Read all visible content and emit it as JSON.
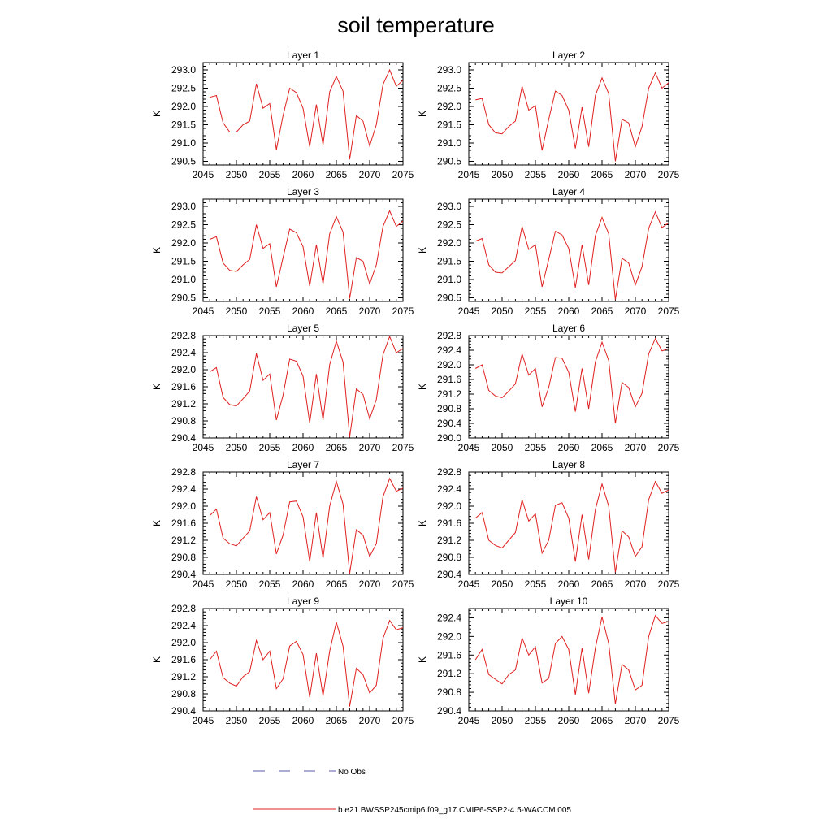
{
  "title": "soil temperature",
  "ylabel": "K",
  "legend": [
    {
      "label": "No Obs",
      "color": "#5a5aa8",
      "dash": true
    },
    {
      "label": "b.e21.BWSSP245cmip6.f09_g17.CMIP6-SSP2-4.5-WACCM.005",
      "color": "#e02020",
      "dash": false
    }
  ],
  "chart_data": [
    {
      "type": "line",
      "title": "Layer 1",
      "xlim": [
        2045,
        2075
      ],
      "ylim": [
        290.4,
        293.2
      ],
      "xticks": [
        "2045",
        "2050",
        "2055",
        "2060",
        "2065",
        "2070",
        "2075"
      ],
      "yticks": [
        "290.5",
        "291.0",
        "291.5",
        "292.0",
        "292.5",
        "293.0"
      ],
      "x": [
        2046,
        2047,
        2048,
        2049,
        2050,
        2051,
        2052,
        2053,
        2054,
        2055,
        2056,
        2057,
        2058,
        2059,
        2060,
        2061,
        2062,
        2063,
        2064,
        2065,
        2066,
        2067,
        2068,
        2069,
        2070,
        2071,
        2072,
        2073,
        2074,
        2075
      ],
      "series": [
        {
          "values": [
            292.25,
            292.3,
            291.55,
            291.3,
            291.3,
            291.5,
            291.6,
            292.62,
            291.95,
            292.08,
            290.82,
            291.75,
            292.5,
            292.38,
            291.95,
            290.9,
            292.05,
            290.95,
            292.4,
            292.82,
            292.42,
            290.55,
            291.75,
            291.6,
            290.92,
            291.5,
            292.6,
            293.0,
            292.55,
            292.72
          ]
        }
      ]
    },
    {
      "type": "line",
      "title": "Layer 2",
      "xlim": [
        2045,
        2075
      ],
      "ylim": [
        290.4,
        293.2
      ],
      "xticks": [
        "2045",
        "2050",
        "2055",
        "2060",
        "2065",
        "2070",
        "2075"
      ],
      "yticks": [
        "290.5",
        "291.0",
        "291.5",
        "292.0",
        "292.5",
        "293.0"
      ],
      "x": [
        2046,
        2047,
        2048,
        2049,
        2050,
        2051,
        2052,
        2053,
        2054,
        2055,
        2056,
        2057,
        2058,
        2059,
        2060,
        2061,
        2062,
        2063,
        2064,
        2065,
        2066,
        2067,
        2068,
        2069,
        2070,
        2071,
        2072,
        2073,
        2074,
        2075
      ],
      "series": [
        {
          "values": [
            292.18,
            292.22,
            291.5,
            291.28,
            291.25,
            291.45,
            291.6,
            292.55,
            291.9,
            292.02,
            290.8,
            291.65,
            292.42,
            292.3,
            291.9,
            290.85,
            291.98,
            290.9,
            292.3,
            292.78,
            292.35,
            290.5,
            291.65,
            291.55,
            290.9,
            291.45,
            292.5,
            292.92,
            292.5,
            292.65
          ]
        }
      ]
    },
    {
      "type": "line",
      "title": "Layer 3",
      "xlim": [
        2045,
        2075
      ],
      "ylim": [
        290.4,
        293.2
      ],
      "xticks": [
        "2045",
        "2050",
        "2055",
        "2060",
        "2065",
        "2070",
        "2075"
      ],
      "yticks": [
        "290.5",
        "291.0",
        "291.5",
        "292.0",
        "292.5",
        "293.0"
      ],
      "x": [
        2046,
        2047,
        2048,
        2049,
        2050,
        2051,
        2052,
        2053,
        2054,
        2055,
        2056,
        2057,
        2058,
        2059,
        2060,
        2061,
        2062,
        2063,
        2064,
        2065,
        2066,
        2067,
        2068,
        2069,
        2070,
        2071,
        2072,
        2073,
        2074,
        2075
      ],
      "series": [
        {
          "values": [
            292.1,
            292.17,
            291.45,
            291.25,
            291.22,
            291.4,
            291.55,
            292.5,
            291.85,
            291.98,
            290.8,
            291.6,
            292.38,
            292.28,
            291.9,
            290.82,
            291.95,
            290.88,
            292.25,
            292.72,
            292.3,
            290.48,
            291.6,
            291.5,
            290.88,
            291.4,
            292.45,
            292.88,
            292.45,
            292.6
          ]
        }
      ]
    },
    {
      "type": "line",
      "title": "Layer 4",
      "xlim": [
        2045,
        2075
      ],
      "ylim": [
        290.4,
        293.2
      ],
      "xticks": [
        "2045",
        "2050",
        "2055",
        "2060",
        "2065",
        "2070",
        "2075"
      ],
      "yticks": [
        "290.5",
        "291.0",
        "291.5",
        "292.0",
        "292.5",
        "293.0"
      ],
      "x": [
        2046,
        2047,
        2048,
        2049,
        2050,
        2051,
        2052,
        2053,
        2054,
        2055,
        2056,
        2057,
        2058,
        2059,
        2060,
        2061,
        2062,
        2063,
        2064,
        2065,
        2066,
        2067,
        2068,
        2069,
        2070,
        2071,
        2072,
        2073,
        2074,
        2075
      ],
      "series": [
        {
          "values": [
            292.05,
            292.12,
            291.4,
            291.2,
            291.18,
            291.35,
            291.52,
            292.45,
            291.82,
            291.95,
            290.8,
            291.55,
            292.32,
            292.22,
            291.85,
            290.78,
            291.95,
            290.85,
            292.2,
            292.7,
            292.25,
            290.45,
            291.58,
            291.45,
            290.85,
            291.35,
            292.4,
            292.85,
            292.42,
            292.55
          ]
        }
      ]
    },
    {
      "type": "line",
      "title": "Layer 5",
      "xlim": [
        2045,
        2075
      ],
      "ylim": [
        290.4,
        292.8
      ],
      "xticks": [
        "2045",
        "2050",
        "2055",
        "2060",
        "2065",
        "2070",
        "2075"
      ],
      "yticks": [
        "290.4",
        "290.8",
        "291.2",
        "291.6",
        "292.0",
        "292.4",
        "292.8"
      ],
      "x": [
        2046,
        2047,
        2048,
        2049,
        2050,
        2051,
        2052,
        2053,
        2054,
        2055,
        2056,
        2057,
        2058,
        2059,
        2060,
        2061,
        2062,
        2063,
        2064,
        2065,
        2066,
        2067,
        2068,
        2069,
        2070,
        2071,
        2072,
        2073,
        2074,
        2075
      ],
      "series": [
        {
          "values": [
            291.95,
            292.05,
            291.35,
            291.18,
            291.15,
            291.32,
            291.5,
            292.38,
            291.75,
            291.9,
            290.82,
            291.4,
            292.25,
            292.2,
            291.85,
            290.75,
            291.9,
            290.82,
            292.12,
            292.67,
            292.18,
            290.42,
            291.55,
            291.42,
            290.85,
            291.3,
            292.35,
            292.78,
            292.4,
            292.5
          ]
        }
      ]
    },
    {
      "type": "line",
      "title": "Layer 6",
      "xlim": [
        2045,
        2075
      ],
      "ylim": [
        290.0,
        292.8
      ],
      "xticks": [
        "2045",
        "2050",
        "2055",
        "2060",
        "2065",
        "2070",
        "2075"
      ],
      "yticks": [
        "290.0",
        "290.4",
        "290.8",
        "291.2",
        "291.6",
        "292.0",
        "292.4",
        "292.8"
      ],
      "x": [
        2046,
        2047,
        2048,
        2049,
        2050,
        2051,
        2052,
        2053,
        2054,
        2055,
        2056,
        2057,
        2058,
        2059,
        2060,
        2061,
        2062,
        2063,
        2064,
        2065,
        2066,
        2067,
        2068,
        2069,
        2070,
        2071,
        2072,
        2073,
        2074,
        2075
      ],
      "series": [
        {
          "values": [
            291.9,
            292.0,
            291.3,
            291.15,
            291.1,
            291.28,
            291.48,
            292.3,
            291.72,
            291.9,
            290.85,
            291.38,
            292.2,
            292.18,
            291.8,
            290.72,
            291.9,
            290.8,
            292.08,
            292.62,
            292.12,
            290.4,
            291.52,
            291.38,
            290.85,
            291.22,
            292.3,
            292.72,
            292.38,
            292.45
          ]
        }
      ]
    },
    {
      "type": "line",
      "title": "Layer 7",
      "xlim": [
        2045,
        2075
      ],
      "ylim": [
        290.4,
        292.8
      ],
      "xticks": [
        "2045",
        "2050",
        "2055",
        "2060",
        "2065",
        "2070",
        "2075"
      ],
      "yticks": [
        "290.4",
        "290.8",
        "291.2",
        "291.6",
        "292.0",
        "292.4",
        "292.8"
      ],
      "x": [
        2046,
        2047,
        2048,
        2049,
        2050,
        2051,
        2052,
        2053,
        2054,
        2055,
        2056,
        2057,
        2058,
        2059,
        2060,
        2061,
        2062,
        2063,
        2064,
        2065,
        2066,
        2067,
        2068,
        2069,
        2070,
        2071,
        2072,
        2073,
        2074,
        2075
      ],
      "series": [
        {
          "values": [
            291.78,
            291.93,
            291.25,
            291.12,
            291.07,
            291.25,
            291.42,
            292.22,
            291.68,
            291.85,
            290.88,
            291.32,
            292.1,
            292.12,
            291.75,
            290.7,
            291.85,
            290.78,
            292.0,
            292.58,
            292.05,
            290.42,
            291.45,
            291.32,
            290.82,
            291.12,
            292.22,
            292.65,
            292.35,
            292.42
          ]
        }
      ]
    },
    {
      "type": "line",
      "title": "Layer 8",
      "xlim": [
        2045,
        2075
      ],
      "ylim": [
        290.4,
        292.8
      ],
      "xticks": [
        "2045",
        "2050",
        "2055",
        "2060",
        "2065",
        "2070",
        "2075"
      ],
      "yticks": [
        "290.4",
        "290.8",
        "291.2",
        "291.6",
        "292.0",
        "292.4",
        "292.8"
      ],
      "x": [
        2046,
        2047,
        2048,
        2049,
        2050,
        2051,
        2052,
        2053,
        2054,
        2055,
        2056,
        2057,
        2058,
        2059,
        2060,
        2061,
        2062,
        2063,
        2064,
        2065,
        2066,
        2067,
        2068,
        2069,
        2070,
        2071,
        2072,
        2073,
        2074,
        2075
      ],
      "series": [
        {
          "values": [
            291.72,
            291.85,
            291.2,
            291.08,
            291.02,
            291.2,
            291.38,
            292.15,
            291.65,
            291.82,
            290.9,
            291.2,
            292.02,
            292.08,
            291.72,
            290.7,
            291.8,
            290.75,
            291.92,
            292.52,
            292.0,
            290.45,
            291.42,
            291.28,
            290.82,
            291.05,
            292.15,
            292.58,
            292.3,
            292.38
          ]
        }
      ]
    },
    {
      "type": "line",
      "title": "Layer 9",
      "xlim": [
        2045,
        2075
      ],
      "ylim": [
        290.4,
        292.8
      ],
      "xticks": [
        "2045",
        "2050",
        "2055",
        "2060",
        "2065",
        "2070",
        "2075"
      ],
      "yticks": [
        "290.4",
        "290.8",
        "291.2",
        "291.6",
        "292.0",
        "292.4",
        "292.8"
      ],
      "x": [
        2046,
        2047,
        2048,
        2049,
        2050,
        2051,
        2052,
        2053,
        2054,
        2055,
        2056,
        2057,
        2058,
        2059,
        2060,
        2061,
        2062,
        2063,
        2064,
        2065,
        2066,
        2067,
        2068,
        2069,
        2070,
        2071,
        2072,
        2073,
        2074,
        2075
      ],
      "series": [
        {
          "values": [
            291.6,
            291.8,
            291.18,
            291.05,
            290.98,
            291.2,
            291.32,
            292.05,
            291.6,
            291.8,
            290.92,
            291.15,
            291.92,
            292.03,
            291.72,
            290.72,
            291.75,
            290.75,
            291.8,
            292.48,
            291.92,
            290.5,
            291.4,
            291.25,
            290.82,
            291.0,
            292.1,
            292.52,
            292.3,
            292.35
          ]
        }
      ]
    },
    {
      "type": "line",
      "title": "Layer 10",
      "xlim": [
        2045,
        2075
      ],
      "ylim": [
        290.4,
        292.6
      ],
      "xticks": [
        "2045",
        "2050",
        "2055",
        "2060",
        "2065",
        "2070",
        "2075"
      ],
      "yticks": [
        "290.4",
        "290.8",
        "291.2",
        "291.6",
        "292.0",
        "292.4"
      ],
      "x": [
        2046,
        2047,
        2048,
        2049,
        2050,
        2051,
        2052,
        2053,
        2054,
        2055,
        2056,
        2057,
        2058,
        2059,
        2060,
        2061,
        2062,
        2063,
        2064,
        2065,
        2066,
        2067,
        2068,
        2069,
        2070,
        2071,
        2072,
        2073,
        2074,
        2075
      ],
      "series": [
        {
          "values": [
            291.5,
            291.72,
            291.18,
            291.08,
            290.98,
            291.18,
            291.28,
            291.97,
            291.6,
            291.78,
            291.0,
            291.1,
            291.85,
            292.0,
            291.72,
            290.75,
            291.75,
            290.78,
            291.75,
            292.42,
            291.85,
            290.55,
            291.4,
            291.28,
            290.85,
            290.95,
            292.0,
            292.45,
            292.28,
            292.32
          ]
        }
      ]
    }
  ]
}
